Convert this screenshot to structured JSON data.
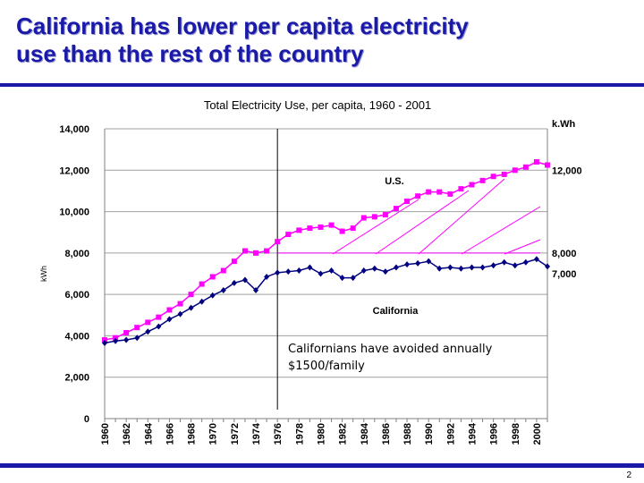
{
  "slide": {
    "title_line1": "California has lower per capita electricity",
    "title_line2": "use than the rest of the country",
    "page_number": "2"
  },
  "colors": {
    "accent": "#1a1aa8",
    "us_series": "#ff00ff",
    "ca_series": "#000080",
    "hatch": "#ff00ff"
  },
  "chart_data": {
    "type": "line",
    "title": "Total Electricity Use,  per capita, 1960 - 2001",
    "ylabel": "kWh",
    "xlabel": "",
    "ylim": [
      0,
      14000
    ],
    "y_ticks": [
      "0",
      "2,000",
      "4,000",
      "6,000",
      "8,000",
      "10,000",
      "12,000",
      "14,000"
    ],
    "y_tick_values": [
      0,
      2000,
      4000,
      6000,
      8000,
      10000,
      12000,
      14000
    ],
    "x_range": [
      1960,
      2001
    ],
    "x_ticks": [
      "1960",
      "1962",
      "1964",
      "1966",
      "1968",
      "1970",
      "1972",
      "1974",
      "1976",
      "1978",
      "1980",
      "1982",
      "1984",
      "1986",
      "1988",
      "1990",
      "1992",
      "1994",
      "1996",
      "1998",
      "2000"
    ],
    "x": [
      1960,
      1961,
      1962,
      1963,
      1964,
      1965,
      1966,
      1967,
      1968,
      1969,
      1970,
      1971,
      1972,
      1973,
      1974,
      1975,
      1976,
      1977,
      1978,
      1979,
      1980,
      1981,
      1982,
      1983,
      1984,
      1985,
      1986,
      1987,
      1988,
      1989,
      1990,
      1991,
      1992,
      1993,
      1994,
      1995,
      1996,
      1997,
      1998,
      1999,
      2000,
      2001
    ],
    "series": [
      {
        "name": "U.S.",
        "color": "#ff00ff",
        "marker": "square",
        "values": [
          3800,
          3900,
          4150,
          4400,
          4650,
          4900,
          5250,
          5550,
          6000,
          6500,
          6850,
          7150,
          7600,
          8100,
          8000,
          8100,
          8550,
          8900,
          9100,
          9200,
          9250,
          9350,
          9050,
          9200,
          9700,
          9750,
          9850,
          10150,
          10500,
          10750,
          10950,
          10950,
          10850,
          11100,
          11300,
          11500,
          11700,
          11800,
          12000,
          12150,
          12400,
          12250
        ]
      },
      {
        "name": "California",
        "color": "#000080",
        "marker": "diamond",
        "values": [
          3650,
          3750,
          3800,
          3900,
          4200,
          4450,
          4800,
          5050,
          5350,
          5650,
          5950,
          6200,
          6550,
          6700,
          6200,
          6850,
          7050,
          7100,
          7150,
          7300,
          7000,
          7150,
          6800,
          6800,
          7150,
          7250,
          7100,
          7300,
          7450,
          7500,
          7600,
          7250,
          7300,
          7250,
          7300,
          7300,
          7400,
          7550,
          7400,
          7550,
          7700,
          7350
        ]
      }
    ],
    "reference_lines": {
      "vertical_year": 1976,
      "horizontal_value": 8000
    },
    "right_labels": [
      "k.Wh",
      "12,000",
      "8,000",
      "7,000"
    ],
    "right_label_values": [
      null,
      12000,
      8000,
      7000
    ],
    "annotation": {
      "line1": "Californians have avoided annually",
      "line2": "$1500/family"
    },
    "grid": true,
    "legend": "inline labels"
  }
}
